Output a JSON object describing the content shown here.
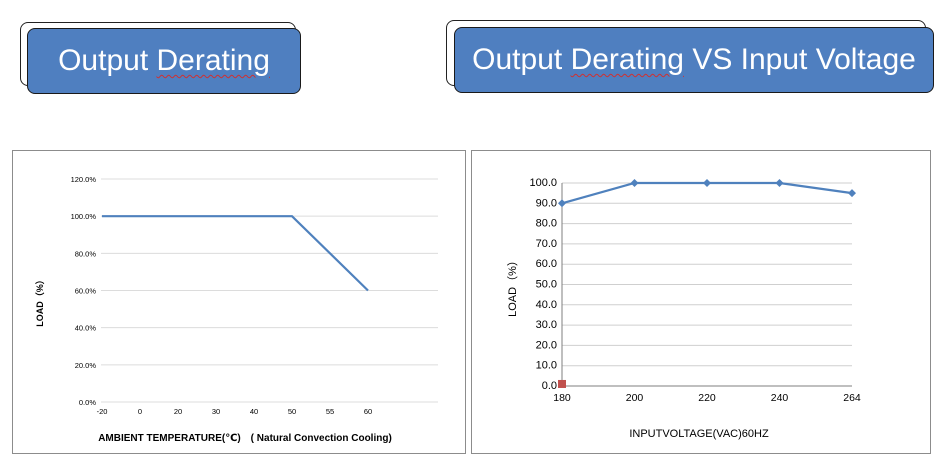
{
  "banners": {
    "left": {
      "word1": "Output",
      "word2": "Derating",
      "rest": ""
    },
    "right": {
      "word1": "Output",
      "word2": "Derating",
      "rest": "VS Input Voltage"
    }
  },
  "chart_data": [
    {
      "type": "line",
      "title": "",
      "xlabel": "AMBIENT TEMPERATURE(℃)　( Natural Convection Cooling)",
      "ylabel": "LOAD（%）",
      "categories": [
        "-20",
        "0",
        "20",
        "30",
        "40",
        "50",
        "55",
        "60"
      ],
      "series": [
        {
          "values": [
            100,
            null,
            null,
            null,
            null,
            100,
            null,
            60
          ],
          "color": "#4f81bd"
        }
      ],
      "y_ticks": [
        "0.0%",
        "20.0%",
        "40.0%",
        "60.0%",
        "80.0%",
        "100.0%",
        "120.0%"
      ],
      "ylim": [
        0,
        120
      ],
      "grid": true,
      "legend": "none"
    },
    {
      "type": "line",
      "title": "",
      "xlabel": "INPUTVOLTAGE(VAC)60HZ",
      "ylabel": "LOAD（%）",
      "categories": [
        "180",
        "200",
        "220",
        "240",
        "264"
      ],
      "series": [
        {
          "values": [
            90,
            100,
            100,
            100,
            95
          ],
          "color": "#4f81bd",
          "marker": "diamond"
        },
        {
          "values": [
            1,
            null,
            null,
            null,
            null
          ],
          "color": "#c0504d",
          "marker": "square"
        }
      ],
      "y_ticks": [
        "0.0",
        "10.0",
        "20.0",
        "30.0",
        "40.0",
        "50.0",
        "60.0",
        "70.0",
        "80.0",
        "90.0",
        "100.0"
      ],
      "ylim": [
        0,
        100
      ],
      "grid": true,
      "legend": "none"
    }
  ]
}
